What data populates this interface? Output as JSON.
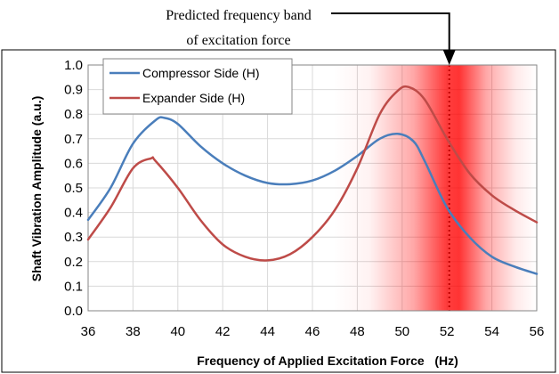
{
  "chart_data": {
    "type": "line",
    "xlabel": "Frequency of Applied Excitation Force   (Hz)",
    "ylabel": "Shaft Vibration Amplitude (a.u.)",
    "xlim": [
      36,
      56
    ],
    "ylim": [
      0.0,
      1.0
    ],
    "xticks": [
      "36",
      "38",
      "40",
      "42",
      "44",
      "46",
      "48",
      "50",
      "52",
      "54",
      "56"
    ],
    "yticks": [
      "0.0",
      "0.1",
      "0.2",
      "0.3",
      "0.4",
      "0.5",
      "0.6",
      "0.7",
      "0.8",
      "0.9",
      "1.0"
    ],
    "grid": true,
    "legend_position": "top-left",
    "series": [
      {
        "name": "Compressor Side (H)",
        "color": "#4a7ebb",
        "x": [
          36,
          37,
          38,
          39,
          39.4,
          40,
          41,
          42,
          43,
          44,
          45,
          46,
          47,
          48,
          49,
          49.8,
          50.5,
          51,
          52,
          53,
          54,
          55,
          56
        ],
        "y": [
          0.37,
          0.5,
          0.68,
          0.775,
          0.785,
          0.76,
          0.67,
          0.6,
          0.55,
          0.52,
          0.515,
          0.53,
          0.57,
          0.63,
          0.7,
          0.72,
          0.69,
          0.61,
          0.42,
          0.3,
          0.22,
          0.18,
          0.15
        ]
      },
      {
        "name": "Expander Side (H)",
        "color": "#be4b48",
        "x": [
          36,
          37,
          38,
          38.8,
          39,
          40,
          41,
          42,
          43,
          44,
          45,
          46,
          47,
          48,
          49,
          49.8,
          50.3,
          51,
          52,
          53,
          54,
          55,
          56
        ],
        "y": [
          0.29,
          0.42,
          0.58,
          0.62,
          0.61,
          0.5,
          0.37,
          0.27,
          0.22,
          0.205,
          0.23,
          0.3,
          0.41,
          0.58,
          0.8,
          0.895,
          0.91,
          0.86,
          0.7,
          0.56,
          0.47,
          0.41,
          0.36
        ]
      }
    ],
    "highlight_band": {
      "center_x": 52.1,
      "color": "#ff0000"
    },
    "annotation": {
      "line1": "Predicted frequency band",
      "line2": "of excitation force",
      "x": 52.1
    }
  }
}
